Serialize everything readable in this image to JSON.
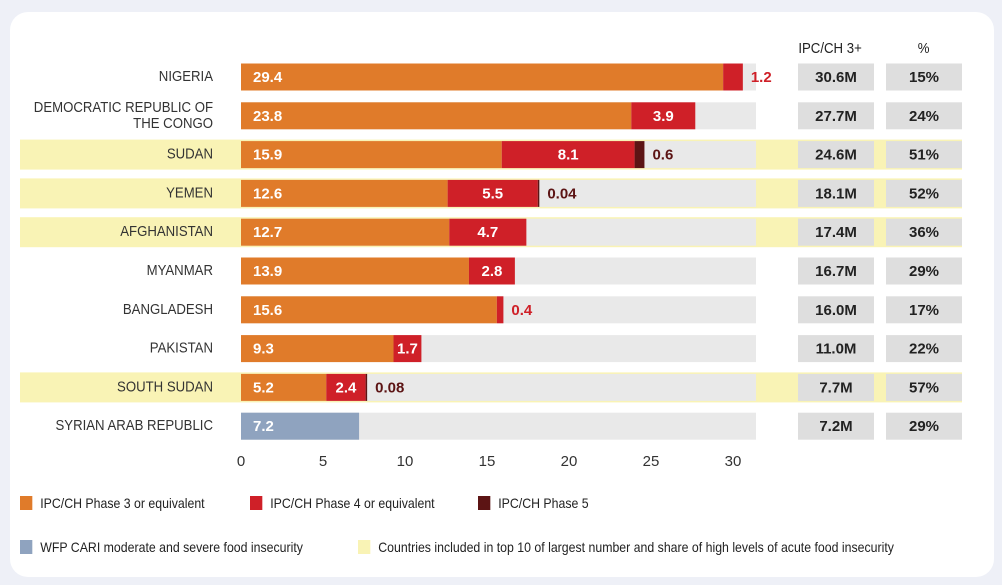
{
  "colors": {
    "phase3": "#e07b2a",
    "phase4": "#cf2028",
    "phase5": "#5c1414",
    "cari": "#8fa3bf",
    "highlight": "#f9f3b5",
    "track": "#e9e9e9",
    "box": "#dedede"
  },
  "columns": {
    "count_header": "IPC/CH 3+",
    "share_header": "%"
  },
  "legend": {
    "phase3": "IPC/CH Phase 3 or equivalent",
    "phase4": "IPC/CH Phase 4 or equivalent",
    "phase5": "IPC/CH Phase 5",
    "cari": "WFP CARI moderate and severe food insecurity",
    "highlight": "Countries included in top 10 of largest number and share of high levels of acute food insecurity"
  },
  "chart_data": {
    "type": "bar",
    "orientation": "horizontal",
    "stacked": true,
    "xlim": [
      0,
      33
    ],
    "xticks": [
      "0",
      "5",
      "10",
      "15",
      "20",
      "25",
      "30"
    ],
    "categories": [
      "NIGERIA",
      "DEMOCRATIC REPUBLIC OF THE CONGO",
      "SUDAN",
      "YEMEN",
      "AFGHANISTAN",
      "MYANMAR",
      "BANGLADESH",
      "PAKISTAN",
      "SOUTH SUDAN",
      "SYRIAN ARAB REPUBLIC"
    ],
    "series": [
      {
        "name": "IPC/CH Phase 3 or equivalent",
        "values": [
          29.4,
          23.8,
          15.9,
          12.6,
          12.7,
          13.9,
          15.6,
          9.3,
          5.2,
          null
        ]
      },
      {
        "name": "IPC/CH Phase 4 or equivalent",
        "values": [
          1.2,
          3.9,
          8.1,
          5.5,
          4.7,
          2.8,
          0.4,
          1.7,
          2.4,
          null
        ]
      },
      {
        "name": "IPC/CH Phase 5",
        "values": [
          null,
          null,
          0.6,
          0.04,
          null,
          null,
          null,
          null,
          0.08,
          null
        ]
      },
      {
        "name": "WFP CARI moderate and severe food insecurity",
        "values": [
          null,
          null,
          null,
          null,
          null,
          null,
          null,
          null,
          null,
          7.2
        ]
      }
    ],
    "labels": {
      "phase3": [
        "29.4",
        "23.8",
        "15.9",
        "12.6",
        "12.7",
        "13.9",
        "15.6",
        "9.3",
        "5.2",
        ""
      ],
      "phase4": [
        "1.2",
        "3.9",
        "8.1",
        "5.5",
        "4.7",
        "2.8",
        "0.4",
        "1.7",
        "2.4",
        ""
      ],
      "phase5": [
        "",
        "",
        "0.6",
        "0.04",
        "",
        "",
        "",
        "",
        "0.08",
        ""
      ],
      "cari": [
        "",
        "",
        "",
        "",
        "",
        "",
        "",
        "",
        "",
        "7.2"
      ]
    },
    "highlighted": [
      false,
      false,
      true,
      true,
      true,
      false,
      false,
      false,
      true,
      false
    ],
    "ipc_ch3_plus": [
      "30.6M",
      "27.7M",
      "24.6M",
      "18.1M",
      "17.4M",
      "16.7M",
      "16.0M",
      "11.0M",
      "7.7M",
      "7.2M"
    ],
    "share_percent": [
      "15%",
      "24%",
      "51%",
      "52%",
      "36%",
      "29%",
      "17%",
      "22%",
      "57%",
      "29%"
    ]
  }
}
